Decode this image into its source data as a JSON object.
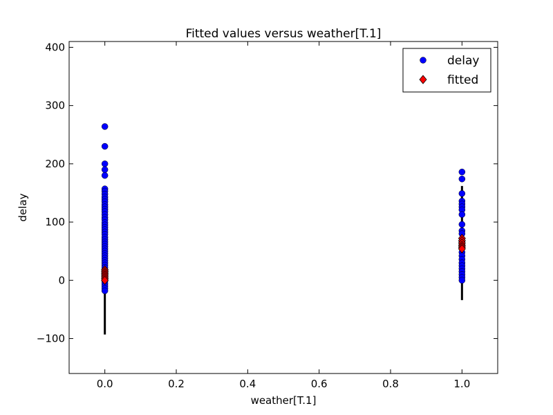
{
  "chart_data": {
    "type": "scatter",
    "title": "Fitted values versus weather[T.1]",
    "xlabel": "weather[T.1]",
    "ylabel": "delay",
    "xlim": [
      -0.1,
      1.1
    ],
    "ylim": [
      -160,
      410
    ],
    "xticks": [
      0.0,
      0.2,
      0.4,
      0.6,
      0.8,
      1.0
    ],
    "xtick_labels": [
      "0.0",
      "0.2",
      "0.4",
      "0.6",
      "0.8",
      "1.0"
    ],
    "yticks": [
      -100,
      0,
      100,
      200,
      300,
      400
    ],
    "ytick_labels": [
      "−100",
      "0",
      "100",
      "200",
      "300",
      "400"
    ],
    "grid": false,
    "legend": {
      "position": "top-right",
      "entries": [
        "delay",
        "fitted"
      ]
    },
    "series": [
      {
        "name": "delay",
        "marker": "circle",
        "color": "#0000ff",
        "points": [
          [
            0,
            264
          ],
          [
            0,
            230
          ],
          [
            0,
            200
          ],
          [
            0,
            190
          ],
          [
            0,
            180
          ],
          [
            0,
            157
          ],
          [
            0,
            153
          ],
          [
            0,
            148
          ],
          [
            0,
            143
          ],
          [
            0,
            139
          ],
          [
            0,
            135
          ],
          [
            0,
            130
          ],
          [
            0,
            126
          ],
          [
            0,
            122
          ],
          [
            0,
            118
          ],
          [
            0,
            113
          ],
          [
            0,
            108
          ],
          [
            0,
            104
          ],
          [
            0,
            99
          ],
          [
            0,
            95
          ],
          [
            0,
            91
          ],
          [
            0,
            87
          ],
          [
            0,
            83
          ],
          [
            0,
            79
          ],
          [
            0,
            74
          ],
          [
            0,
            70
          ],
          [
            0,
            66
          ],
          [
            0,
            62
          ],
          [
            0,
            58
          ],
          [
            0,
            54
          ],
          [
            0,
            50
          ],
          [
            0,
            46
          ],
          [
            0,
            42
          ],
          [
            0,
            38
          ],
          [
            0,
            34
          ],
          [
            0,
            30
          ],
          [
            0,
            26
          ],
          [
            0,
            22
          ],
          [
            0,
            18
          ],
          [
            0,
            14
          ],
          [
            0,
            10
          ],
          [
            0,
            6
          ],
          [
            0,
            2
          ],
          [
            0,
            -2
          ],
          [
            0,
            -6
          ],
          [
            0,
            -10
          ],
          [
            0,
            -14
          ],
          [
            0,
            -18
          ],
          [
            1,
            186
          ],
          [
            1,
            174
          ],
          [
            1,
            149
          ],
          [
            1,
            136
          ],
          [
            1,
            131
          ],
          [
            1,
            126
          ],
          [
            1,
            121
          ],
          [
            1,
            113
          ],
          [
            1,
            96
          ],
          [
            1,
            85
          ],
          [
            1,
            80
          ],
          [
            1,
            66
          ],
          [
            1,
            61
          ],
          [
            1,
            55
          ],
          [
            1,
            48
          ],
          [
            1,
            42
          ],
          [
            1,
            36
          ],
          [
            1,
            30
          ],
          [
            1,
            25
          ],
          [
            1,
            20
          ],
          [
            1,
            15
          ],
          [
            1,
            10
          ],
          [
            1,
            5
          ],
          [
            1,
            0
          ]
        ]
      },
      {
        "name": "fitted",
        "marker": "diamond",
        "color": "#ff0000",
        "points": [
          [
            0,
            18
          ],
          [
            0,
            15
          ],
          [
            0,
            12
          ],
          [
            0,
            9
          ],
          [
            0,
            6
          ],
          [
            0,
            3
          ],
          [
            0,
            0
          ],
          [
            1,
            72
          ],
          [
            1,
            68
          ],
          [
            1,
            64
          ],
          [
            1,
            60
          ],
          [
            1,
            57
          ],
          [
            1,
            54
          ]
        ]
      }
    ],
    "error_bars": [
      {
        "x": 0,
        "low": -93,
        "high": 27
      },
      {
        "x": 1,
        "low": -34,
        "high": 162
      }
    ]
  }
}
